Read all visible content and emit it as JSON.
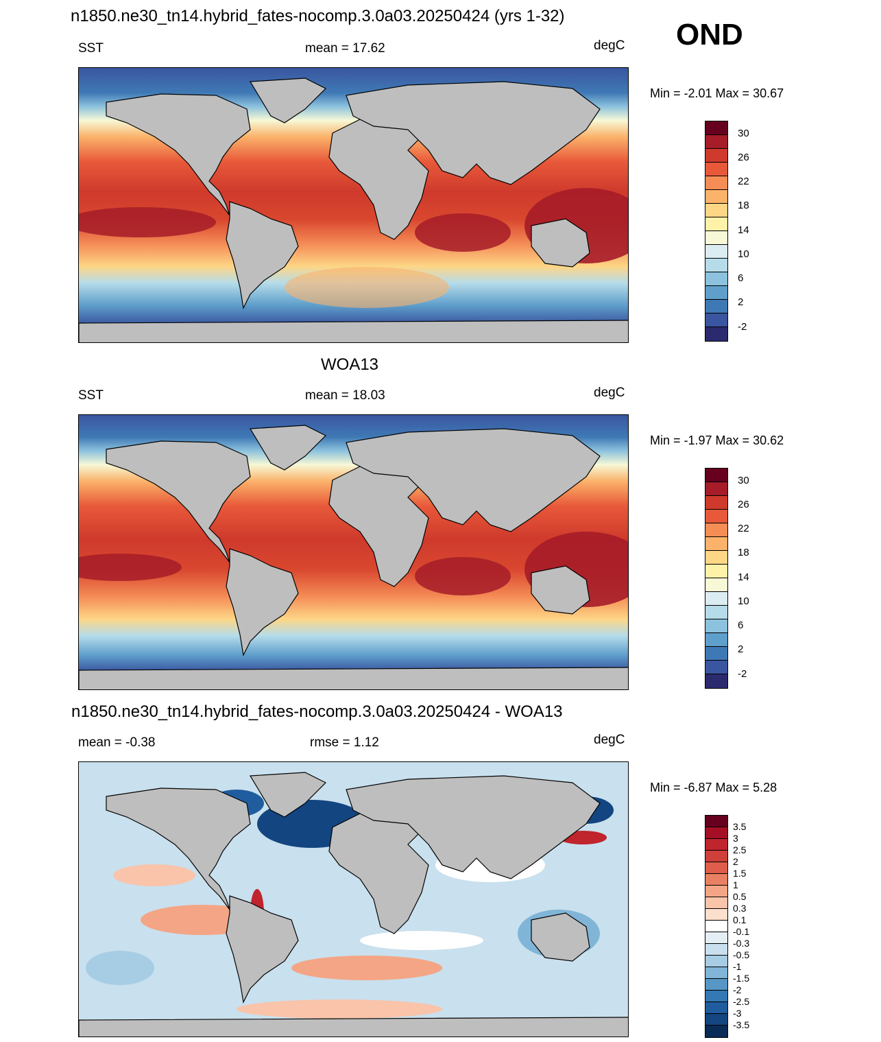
{
  "header": {
    "title_model": "n1850.ne30_tn14.hybrid_fates-nocomp.3.0a03.20250424 (yrs 1-32)",
    "season": "OND"
  },
  "panel_model": {
    "variable": "SST",
    "stat": "mean =  17.62",
    "units": "degC",
    "minmax": "Min =  -2.01 Max =  30.67"
  },
  "panel_obs": {
    "title": "WOA13",
    "variable": "SST",
    "stat": "mean =  18.03",
    "units": "degC",
    "minmax": "Min =  -1.97 Max =  30.62"
  },
  "panel_diff": {
    "title": "n1850.ne30_tn14.hybrid_fates-nocomp.3.0a03.20250424 - WOA13",
    "stat_mean": "mean =  -0.38",
    "stat_rmse": "rmse =   1.12",
    "units": "degC",
    "minmax": "Min =  -6.87 Max =   5.28"
  },
  "colorbar_sst": {
    "labels": [
      "30",
      "26",
      "22",
      "18",
      "14",
      "10",
      "6",
      "2",
      "-2"
    ],
    "colors": [
      "#67001f",
      "#a61c28",
      "#cf3a2c",
      "#e8593a",
      "#f58d57",
      "#fbb26a",
      "#fdd686",
      "#fef2a8",
      "#f6f8d6",
      "#dcedf2",
      "#b6dcea",
      "#8cc2dd",
      "#5f9fcb",
      "#3f79b5",
      "#3a56a0",
      "#2c2a6e"
    ]
  },
  "colorbar_diff": {
    "labels": [
      "3.5",
      "3",
      "2.5",
      "2",
      "1.5",
      "1",
      "0.5",
      "0.3",
      "0.1",
      "-0.1",
      "-0.3",
      "-0.5",
      "-1",
      "-1.5",
      "-2",
      "-2.5",
      "-3",
      "-3.5"
    ],
    "colors": [
      "#67001f",
      "#a50f25",
      "#c0242d",
      "#d0403a",
      "#de5e4b",
      "#e98063",
      "#f4a585",
      "#f9c4aa",
      "#fcdfcd",
      "#ffffff",
      "#e3eef5",
      "#c9e0ee",
      "#a7cde4",
      "#80b5d7",
      "#5797c5",
      "#3479b3",
      "#1f5d9f",
      "#134581",
      "#082b58"
    ]
  }
}
